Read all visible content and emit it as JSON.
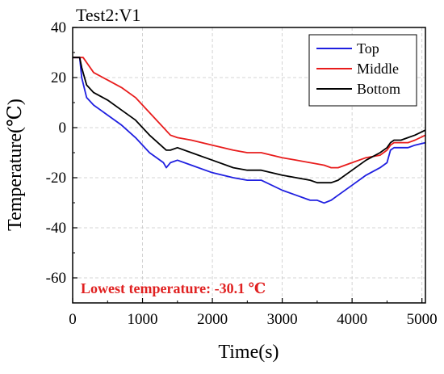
{
  "chart_data": {
    "type": "line",
    "title": "Test2:V1",
    "xlabel": "Time(s)",
    "ylabel": "Temperature(℃)",
    "xlim": [
      0,
      5050
    ],
    "ylim": [
      -70,
      40
    ],
    "xticks": [
      0,
      1000,
      2000,
      3000,
      4000,
      5000
    ],
    "yticks": [
      -60,
      -40,
      -20,
      0,
      20,
      40
    ],
    "xtick_labels": [
      "0",
      "1000",
      "2000",
      "3000",
      "4000",
      "5000"
    ],
    "ytick_labels": [
      "-60",
      "-40",
      "-20",
      "0",
      "20",
      "40"
    ],
    "grid": true,
    "legend_position": "top-right",
    "annotation": {
      "text": "Lowest temperature: -30.1 ℃",
      "color": "#e02020"
    },
    "series": [
      {
        "name": "Top",
        "color": "#1f1fe0",
        "x": [
          0,
          100,
          130,
          200,
          300,
          500,
          700,
          900,
          1100,
          1300,
          1340,
          1400,
          1500,
          1700,
          2000,
          2300,
          2500,
          2700,
          3000,
          3200,
          3400,
          3500,
          3600,
          3700,
          3800,
          4000,
          4200,
          4400,
          4500,
          4550,
          4600,
          4700,
          4800,
          4900,
          5050
        ],
        "y": [
          28,
          28,
          20,
          12,
          9,
          5,
          1,
          -4,
          -10,
          -14,
          -16,
          -14,
          -13,
          -15,
          -18,
          -20,
          -21,
          -21,
          -25,
          -27,
          -29,
          -29,
          -30.1,
          -29,
          -27,
          -23,
          -19,
          -16,
          -14,
          -9,
          -8,
          -8,
          -8,
          -7,
          -6
        ]
      },
      {
        "name": "Middle",
        "color": "#e81c1c",
        "x": [
          0,
          100,
          150,
          200,
          300,
          500,
          700,
          900,
          1100,
          1300,
          1400,
          1500,
          1700,
          2000,
          2300,
          2500,
          2700,
          3000,
          3200,
          3400,
          3600,
          3700,
          3800,
          4000,
          4200,
          4400,
          4500,
          4550,
          4600,
          4700,
          4800,
          4900,
          5050
        ],
        "y": [
          28,
          28,
          28,
          26,
          22,
          19,
          16,
          12,
          6,
          0,
          -3,
          -4,
          -5,
          -7,
          -9,
          -10,
          -10,
          -12,
          -13,
          -14,
          -15,
          -16,
          -16,
          -14,
          -12,
          -11,
          -9,
          -7,
          -6,
          -6,
          -6,
          -5,
          -3
        ]
      },
      {
        "name": "Bottom",
        "color": "#000000",
        "x": [
          0,
          100,
          130,
          200,
          300,
          500,
          700,
          900,
          1100,
          1300,
          1340,
          1400,
          1500,
          1700,
          2000,
          2300,
          2500,
          2700,
          3000,
          3200,
          3400,
          3500,
          3600,
          3700,
          3800,
          4000,
          4200,
          4400,
          4500,
          4550,
          4600,
          4700,
          4800,
          4900,
          5050
        ],
        "y": [
          28,
          28,
          24,
          17,
          14,
          11,
          7,
          3,
          -3,
          -8,
          -9,
          -9,
          -8,
          -10,
          -13,
          -16,
          -17,
          -17,
          -19,
          -20,
          -21,
          -22,
          -22,
          -22,
          -21,
          -17,
          -13,
          -10,
          -8,
          -6,
          -5,
          -5,
          -4,
          -3,
          -1
        ]
      }
    ]
  }
}
